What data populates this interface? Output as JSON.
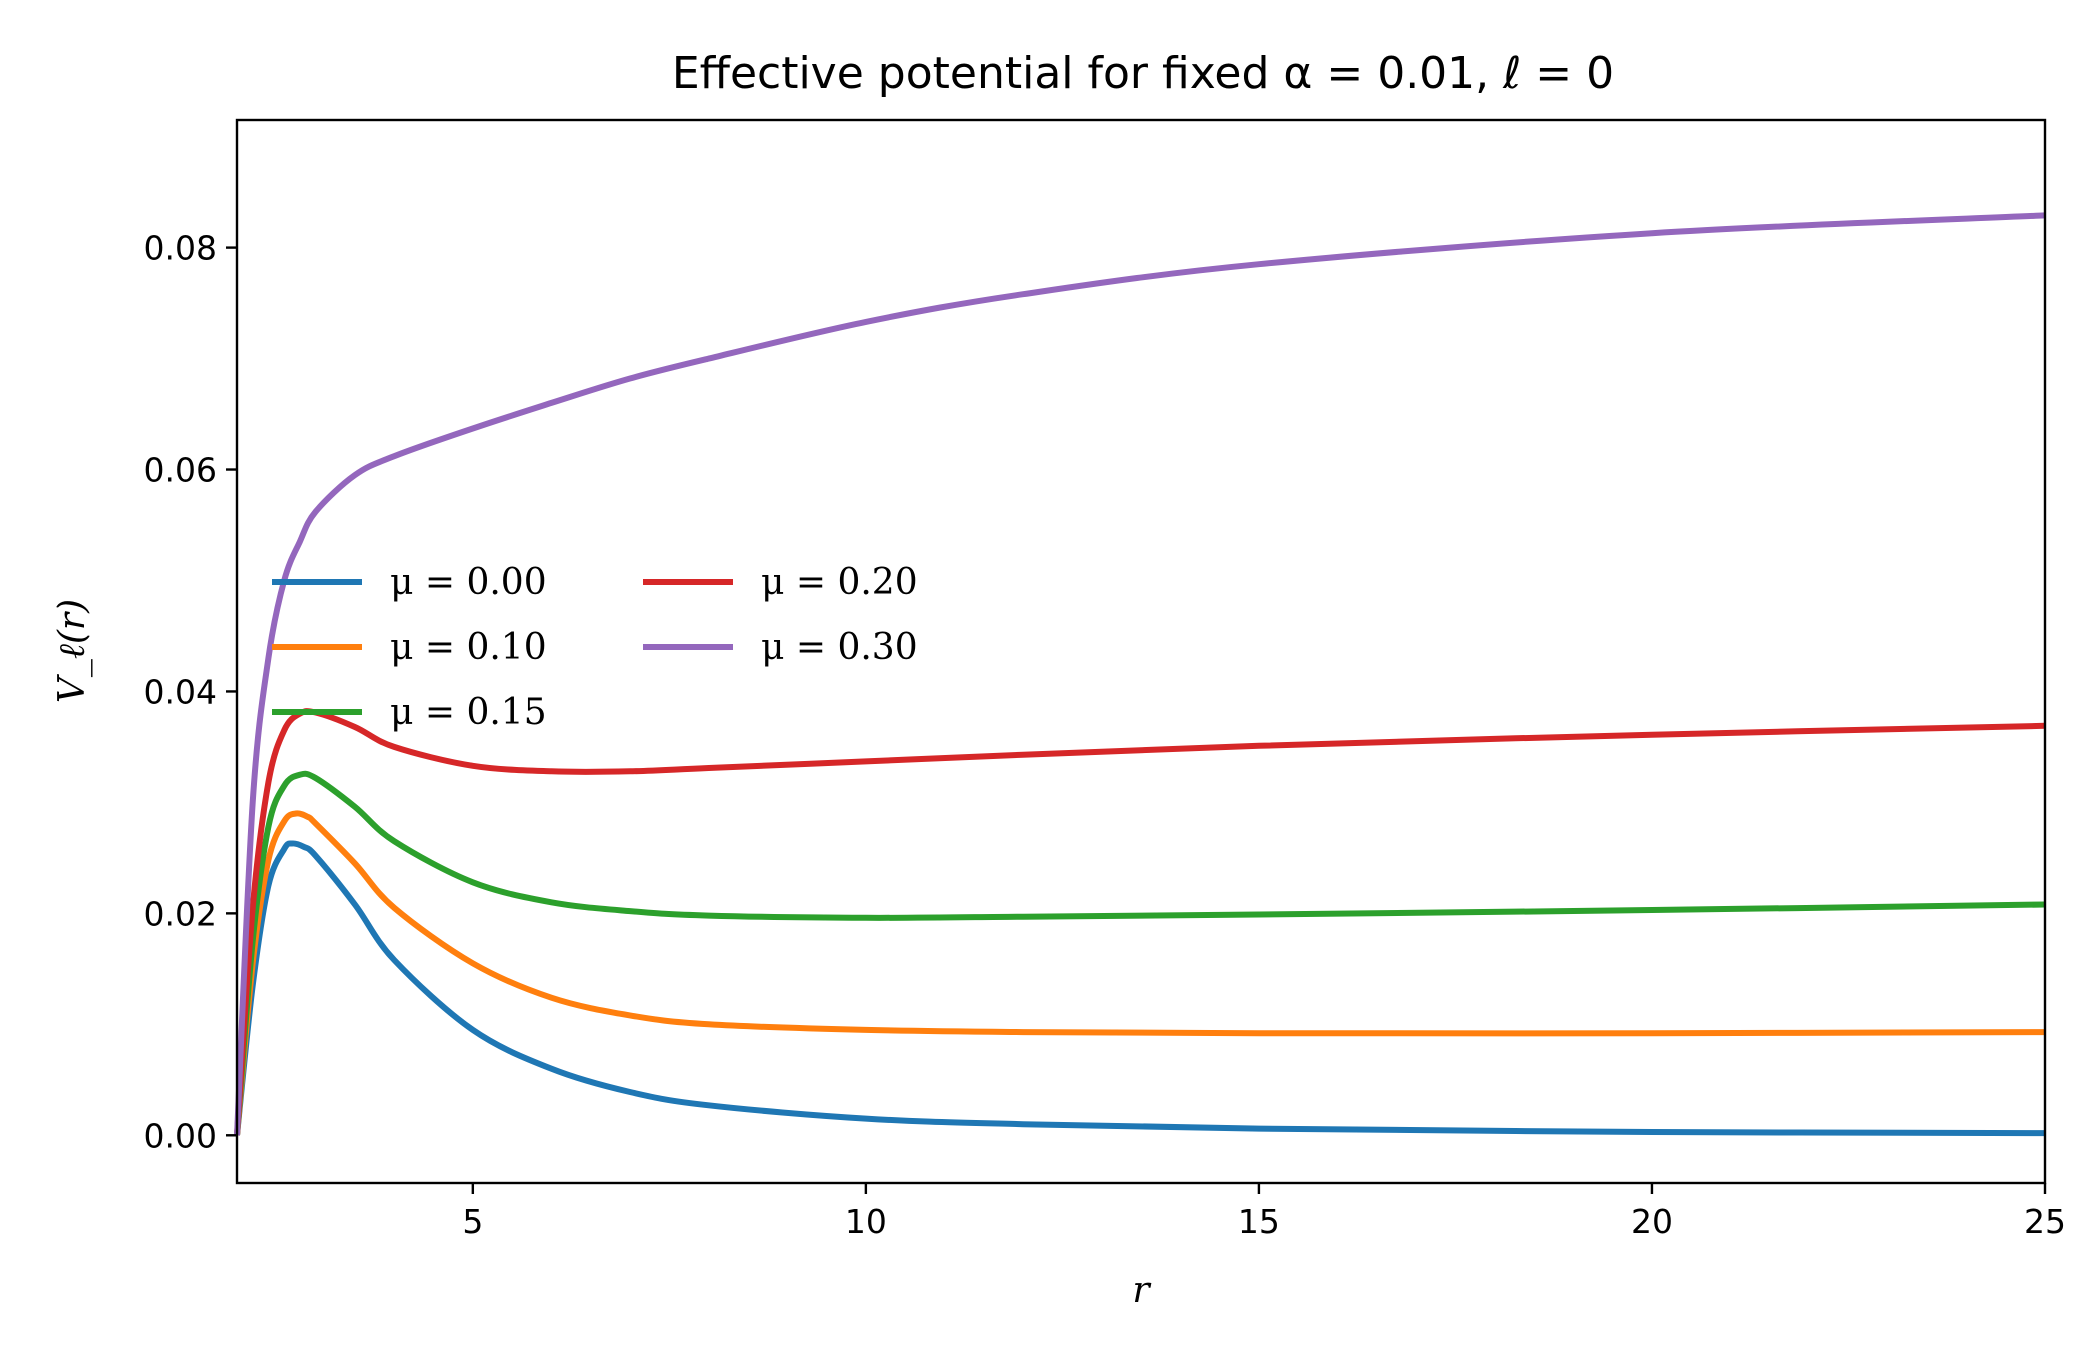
{
  "chart_data": {
    "type": "line",
    "title": "Effective potential for fixed α = 0.01, ℓ = 0",
    "xlabel": "r",
    "ylabel": "V_ℓ(r)",
    "xlim": [
      2.0,
      25.0
    ],
    "ylim": [
      -0.0043,
      0.0915
    ],
    "xticks": [
      5,
      10,
      15,
      20,
      25
    ],
    "xtick_labels": [
      "5",
      "10",
      "15",
      "20",
      "25"
    ],
    "yticks": [
      0.0,
      0.02,
      0.04,
      0.06,
      0.08
    ],
    "ytick_labels": [
      "0.00",
      "0.02",
      "0.04",
      "0.06",
      "0.08"
    ],
    "grid": false,
    "legend_position": "center-left",
    "legend_columns": 2,
    "series": [
      {
        "name": "μ = 0.00",
        "color": "#1f77b4",
        "points": [
          [
            2.0,
            0.0
          ],
          [
            2.2,
            0.0135
          ],
          [
            2.4,
            0.0225
          ],
          [
            2.6,
            0.0258
          ],
          [
            2.7,
            0.0263
          ],
          [
            2.85,
            0.026
          ],
          [
            3.0,
            0.0252
          ],
          [
            3.5,
            0.0208
          ],
          [
            4.0,
            0.0158
          ],
          [
            5.0,
            0.0095
          ],
          [
            6.0,
            0.006
          ],
          [
            7.0,
            0.0039
          ],
          [
            8.0,
            0.0027
          ],
          [
            10.0,
            0.0015
          ],
          [
            12.0,
            0.001
          ],
          [
            15.0,
            0.0006
          ],
          [
            20.0,
            0.0003
          ],
          [
            25.0,
            0.0002
          ]
        ]
      },
      {
        "name": "μ = 0.10",
        "color": "#ff7f0e",
        "points": [
          [
            2.0,
            0.0
          ],
          [
            2.2,
            0.0155
          ],
          [
            2.4,
            0.0248
          ],
          [
            2.6,
            0.0283
          ],
          [
            2.75,
            0.029
          ],
          [
            2.9,
            0.0287
          ],
          [
            3.0,
            0.0281
          ],
          [
            3.5,
            0.0245
          ],
          [
            4.0,
            0.0205
          ],
          [
            5.0,
            0.0155
          ],
          [
            6.0,
            0.0124
          ],
          [
            7.0,
            0.0108
          ],
          [
            8.0,
            0.01
          ],
          [
            10.0,
            0.0095
          ],
          [
            12.0,
            0.0093
          ],
          [
            15.0,
            0.0092
          ],
          [
            20.0,
            0.0092
          ],
          [
            25.0,
            0.0093
          ]
        ]
      },
      {
        "name": "μ = 0.15",
        "color": "#2ca02c",
        "points": [
          [
            2.0,
            0.0
          ],
          [
            2.2,
            0.0175
          ],
          [
            2.4,
            0.0278
          ],
          [
            2.6,
            0.0315
          ],
          [
            2.8,
            0.0325
          ],
          [
            3.0,
            0.0322
          ],
          [
            3.5,
            0.0296
          ],
          [
            4.0,
            0.0265
          ],
          [
            5.0,
            0.0228
          ],
          [
            6.0,
            0.021
          ],
          [
            7.0,
            0.0202
          ],
          [
            8.0,
            0.0198
          ],
          [
            10.0,
            0.0196
          ],
          [
            12.0,
            0.0197
          ],
          [
            15.0,
            0.0199
          ],
          [
            20.0,
            0.0203
          ],
          [
            25.0,
            0.0208
          ]
        ]
      },
      {
        "name": "μ = 0.20",
        "color": "#d62728",
        "points": [
          [
            2.0,
            0.0
          ],
          [
            2.2,
            0.0205
          ],
          [
            2.4,
            0.0318
          ],
          [
            2.6,
            0.0365
          ],
          [
            2.8,
            0.038
          ],
          [
            3.0,
            0.0381
          ],
          [
            3.5,
            0.0368
          ],
          [
            4.0,
            0.035
          ],
          [
            5.0,
            0.0333
          ],
          [
            6.0,
            0.0328
          ],
          [
            7.0,
            0.0328
          ],
          [
            8.0,
            0.0331
          ],
          [
            10.0,
            0.0337
          ],
          [
            12.0,
            0.0343
          ],
          [
            15.0,
            0.0351
          ],
          [
            20.0,
            0.0361
          ],
          [
            25.0,
            0.0369
          ]
        ]
      },
      {
        "name": "μ = 0.30",
        "color": "#9467bd",
        "points": [
          [
            2.0,
            0.0
          ],
          [
            2.2,
            0.03
          ],
          [
            2.4,
            0.043
          ],
          [
            2.6,
            0.05
          ],
          [
            2.8,
            0.0535
          ],
          [
            3.0,
            0.0562
          ],
          [
            3.5,
            0.0595
          ],
          [
            4.0,
            0.0612
          ],
          [
            5.0,
            0.0637
          ],
          [
            6.0,
            0.066
          ],
          [
            7.0,
            0.0682
          ],
          [
            8.0,
            0.07
          ],
          [
            10.0,
            0.0733
          ],
          [
            12.0,
            0.0758
          ],
          [
            15.0,
            0.0785
          ],
          [
            20.0,
            0.0813
          ],
          [
            25.0,
            0.0829
          ]
        ]
      }
    ]
  }
}
